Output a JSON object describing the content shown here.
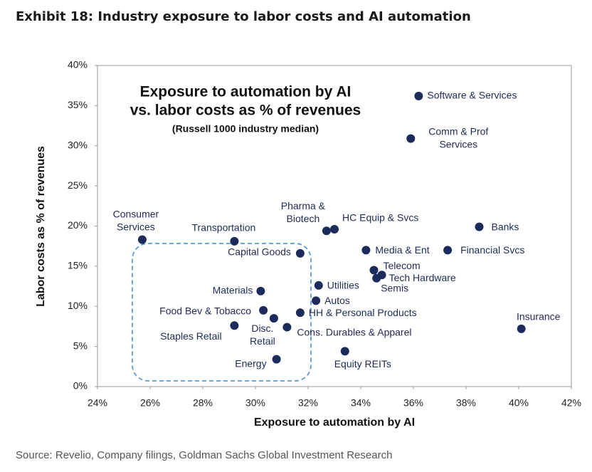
{
  "chart_data": {
    "type": "scatter",
    "title": "Exhibit 18: Industry exposure to labor costs and AI automation",
    "inner_title": [
      "Exposure to automation by AI",
      "vs. labor costs as % of revenues"
    ],
    "inner_subtitle": "(Russell 1000 industry median)",
    "x_label": "Exposure to automation by AI",
    "y_label": "Labor costs as % of revenues",
    "source": "Source: Revelio, Company filings, Goldman Sachs Global Investment Research",
    "color": "#1c2a5c",
    "grid": false,
    "xlim": [
      24,
      42
    ],
    "ylim": [
      0,
      40
    ],
    "xticks": [
      {
        "value": 24,
        "label": "24%"
      },
      {
        "value": 26,
        "label": "26%"
      },
      {
        "value": 28,
        "label": "28%"
      },
      {
        "value": 30,
        "label": "30%"
      },
      {
        "value": 32,
        "label": "32%"
      },
      {
        "value": 34,
        "label": "34%"
      },
      {
        "value": 36,
        "label": "36%"
      },
      {
        "value": 38,
        "label": "38%"
      },
      {
        "value": 40,
        "label": "40%"
      },
      {
        "value": 42,
        "label": "42%"
      }
    ],
    "yticks": [
      {
        "value": 0,
        "label": "0%"
      },
      {
        "value": 5,
        "label": "5%"
      },
      {
        "value": 10,
        "label": "10%"
      },
      {
        "value": 15,
        "label": "15%"
      },
      {
        "value": 20,
        "label": "20%"
      },
      {
        "value": 25,
        "label": "25%"
      },
      {
        "value": 30,
        "label": "30%"
      },
      {
        "value": 35,
        "label": "35%"
      },
      {
        "value": 40,
        "label": "40%"
      }
    ],
    "points": [
      {
        "label": [
          "Software & Services"
        ],
        "x": 36.2,
        "y": 36.2
      },
      {
        "label": [
          "Comm & Prof",
          "Services"
        ],
        "x": 35.9,
        "y": 30.9
      },
      {
        "label": [
          "Consumer",
          "Services"
        ],
        "x": 25.7,
        "y": 18.3
      },
      {
        "label": [
          "Transportation"
        ],
        "x": 29.2,
        "y": 18.1
      },
      {
        "label": [
          "Capital Goods"
        ],
        "x": 31.7,
        "y": 16.6
      },
      {
        "label": [
          "Pharma &",
          "Biotech"
        ],
        "x": 32.7,
        "y": 19.4
      },
      {
        "label": [
          "HC Equip & Svcs"
        ],
        "x": 33.0,
        "y": 19.6
      },
      {
        "label": [
          "Banks"
        ],
        "x": 38.5,
        "y": 19.9
      },
      {
        "label": [
          "Media & Ent"
        ],
        "x": 34.2,
        "y": 17.0
      },
      {
        "label": [
          "Financial Svcs"
        ],
        "x": 37.3,
        "y": 17.0
      },
      {
        "label": [
          "Telecom"
        ],
        "x": 34.5,
        "y": 14.5
      },
      {
        "label": [
          "Tech Hardware"
        ],
        "x": 34.8,
        "y": 13.9
      },
      {
        "label": [
          "Semis"
        ],
        "x": 34.6,
        "y": 13.5
      },
      {
        "label": [
          "Utilities"
        ],
        "x": 32.4,
        "y": 12.6
      },
      {
        "label": [
          "Autos"
        ],
        "x": 32.3,
        "y": 10.7
      },
      {
        "label": [
          "Materials"
        ],
        "x": 30.2,
        "y": 11.9
      },
      {
        "label": [
          "Food Bev & Tobacco"
        ],
        "x": 30.3,
        "y": 9.5
      },
      {
        "label": [
          "Disc.",
          "Retail"
        ],
        "x": 30.7,
        "y": 8.5
      },
      {
        "label": [
          "HH & Personal Products"
        ],
        "x": 31.7,
        "y": 9.2
      },
      {
        "label": [
          "Staples Retail"
        ],
        "x": 29.2,
        "y": 7.6
      },
      {
        "label": [
          "Cons. Durables & Apparel"
        ],
        "x": 31.2,
        "y": 7.4
      },
      {
        "label": [
          "Energy"
        ],
        "x": 30.8,
        "y": 3.4
      },
      {
        "label": [
          "Equity REITs"
        ],
        "x": 33.4,
        "y": 4.4
      },
      {
        "label": [
          "Insurance"
        ],
        "x": 40.1,
        "y": 7.2
      }
    ]
  }
}
